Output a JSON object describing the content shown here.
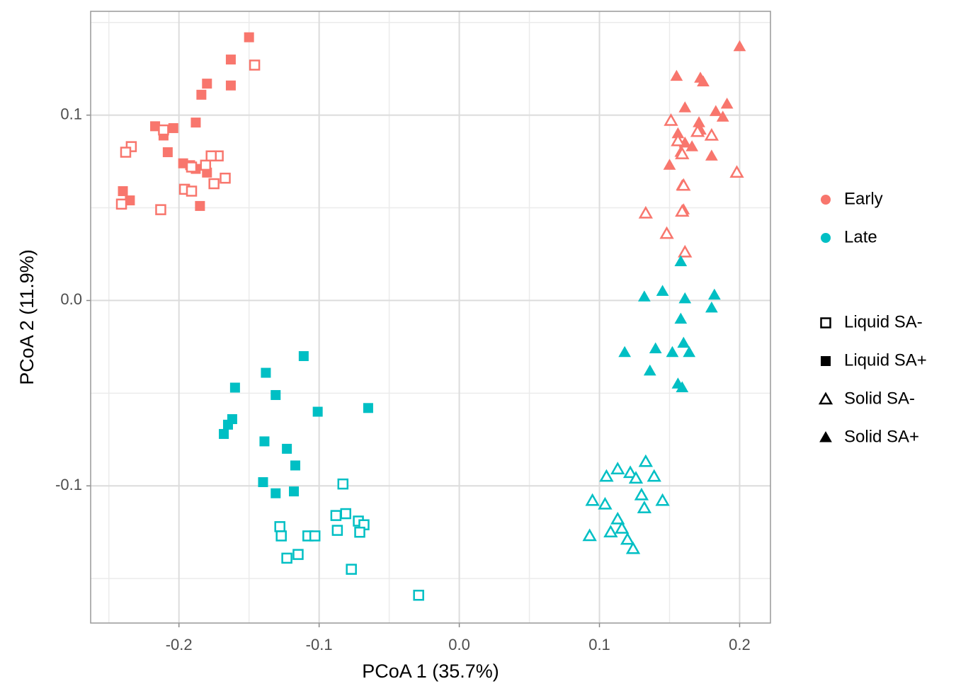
{
  "chart_data": {
    "type": "scatter",
    "xlabel": "PCoA 1 (35.7%)",
    "ylabel": "PCoA 2 (11.9%)",
    "xlim": [
      -0.263,
      0.222
    ],
    "ylim": [
      -0.174,
      0.156
    ],
    "xticks": [
      -0.2,
      -0.1,
      {
        "value": 0,
        "label": "0.0"
      },
      0.1,
      0.2
    ],
    "yticks": [
      -0.1,
      {
        "value": 0,
        "label": "0.0"
      },
      0.1
    ],
    "grid": true,
    "color_legend": [
      {
        "name": "Early",
        "color": "#f8766d"
      },
      {
        "name": "Late",
        "color": "#00bfc4"
      }
    ],
    "shape_legend": [
      {
        "name": "Liquid SA-",
        "shape": "square-open"
      },
      {
        "name": "Liquid SA+",
        "shape": "square"
      },
      {
        "name": "Solid SA-",
        "shape": "triangle-open"
      },
      {
        "name": "Solid SA+",
        "shape": "triangle"
      }
    ],
    "series": [
      {
        "color": "#f8766d",
        "shape": "square",
        "x": [
          -0.15,
          -0.163,
          -0.163,
          -0.18,
          -0.184,
          -0.188,
          -0.217,
          -0.204,
          -0.211,
          -0.208,
          -0.197,
          -0.192,
          -0.188,
          -0.18,
          -0.176,
          -0.24,
          -0.235,
          -0.185
        ],
        "y": [
          0.142,
          0.13,
          0.116,
          0.117,
          0.111,
          0.096,
          0.094,
          0.093,
          0.089,
          0.08,
          0.074,
          0.073,
          0.071,
          0.069,
          0.078,
          0.059,
          0.054,
          0.051
        ]
      },
      {
        "color": "#f8766d",
        "shape": "square-open",
        "x": [
          -0.146,
          -0.234,
          -0.238,
          -0.211,
          -0.172,
          -0.177,
          -0.181,
          -0.191,
          -0.175,
          -0.167,
          -0.196,
          -0.191,
          -0.213,
          -0.241
        ],
        "y": [
          0.127,
          0.083,
          0.08,
          0.092,
          0.078,
          0.078,
          0.073,
          0.072,
          0.063,
          0.066,
          0.06,
          0.059,
          0.049,
          0.052
        ]
      },
      {
        "color": "#f8766d",
        "shape": "triangle",
        "x": [
          0.2,
          0.155,
          0.172,
          0.174,
          0.161,
          0.191,
          0.183,
          0.188,
          0.171,
          0.172,
          0.161,
          0.166,
          0.18,
          0.15,
          0.158,
          0.159,
          0.16,
          0.156
        ],
        "y": [
          0.137,
          0.121,
          0.12,
          0.118,
          0.104,
          0.106,
          0.102,
          0.099,
          0.096,
          0.092,
          0.085,
          0.083,
          0.078,
          0.073,
          0.08,
          0.062,
          0.049,
          0.09
        ]
      },
      {
        "color": "#f8766d",
        "shape": "triangle-open",
        "x": [
          0.151,
          0.18,
          0.156,
          0.17,
          0.159,
          0.198,
          0.16,
          0.159,
          0.133,
          0.148,
          0.161
        ],
        "y": [
          0.097,
          0.089,
          0.086,
          0.091,
          0.079,
          0.069,
          0.062,
          0.048,
          0.047,
          0.036,
          0.026
        ]
      },
      {
        "color": "#00bfc4",
        "shape": "triangle",
        "x": [
          0.158,
          0.132,
          0.145,
          0.161,
          0.182,
          0.18,
          0.158,
          0.16,
          0.164,
          0.118,
          0.14,
          0.152,
          0.136,
          0.156,
          0.159
        ],
        "y": [
          0.021,
          0.002,
          0.005,
          0.001,
          0.003,
          -0.004,
          -0.01,
          -0.023,
          -0.028,
          -0.028,
          -0.026,
          -0.028,
          -0.038,
          -0.045,
          -0.047
        ]
      },
      {
        "color": "#00bfc4",
        "shape": "triangle-open",
        "x": [
          0.133,
          0.113,
          0.122,
          0.105,
          0.126,
          0.139,
          0.13,
          0.095,
          0.104,
          0.145,
          0.132,
          0.113,
          0.116,
          0.093,
          0.108,
          0.12,
          0.124
        ],
        "y": [
          -0.087,
          -0.091,
          -0.093,
          -0.095,
          -0.096,
          -0.095,
          -0.105,
          -0.108,
          -0.11,
          -0.108,
          -0.112,
          -0.118,
          -0.123,
          -0.127,
          -0.125,
          -0.129,
          -0.134
        ]
      },
      {
        "color": "#00bfc4",
        "shape": "square",
        "x": [
          -0.111,
          -0.138,
          -0.16,
          -0.131,
          -0.101,
          -0.065,
          -0.162,
          -0.165,
          -0.168,
          -0.139,
          -0.123,
          -0.117,
          -0.14,
          -0.131,
          -0.118
        ],
        "y": [
          -0.03,
          -0.039,
          -0.047,
          -0.051,
          -0.06,
          -0.058,
          -0.064,
          -0.067,
          -0.072,
          -0.076,
          -0.08,
          -0.089,
          -0.098,
          -0.104,
          -0.103
        ]
      },
      {
        "color": "#00bfc4",
        "shape": "square-open",
        "x": [
          -0.083,
          -0.088,
          -0.081,
          -0.087,
          -0.072,
          -0.068,
          -0.071,
          -0.128,
          -0.127,
          -0.108,
          -0.103,
          -0.115,
          -0.123,
          -0.077,
          -0.029
        ],
        "y": [
          -0.099,
          -0.116,
          -0.115,
          -0.124,
          -0.119,
          -0.121,
          -0.125,
          -0.122,
          -0.127,
          -0.127,
          -0.127,
          -0.137,
          -0.139,
          -0.145,
          -0.159
        ]
      }
    ]
  }
}
